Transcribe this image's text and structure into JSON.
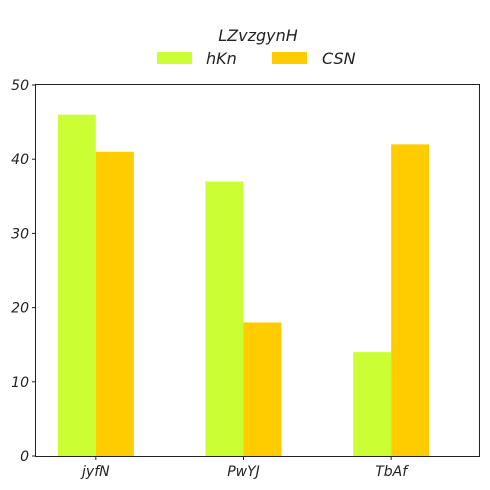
{
  "chart_data": {
    "type": "bar",
    "legend_title": "LZvzgynH",
    "legend_position": "top-center",
    "categories": [
      "jyfN",
      "PwYJ",
      "TbAf"
    ],
    "series": [
      {
        "name": "hKn",
        "color": "#ccff33",
        "values": [
          46,
          37,
          14
        ]
      },
      {
        "name": "CSN",
        "color": "#ffcc00",
        "values": [
          41,
          18,
          42
        ]
      }
    ],
    "ylim": [
      0,
      50
    ],
    "yticks": [
      0,
      10,
      20,
      30,
      40,
      50
    ],
    "grid": false
  }
}
